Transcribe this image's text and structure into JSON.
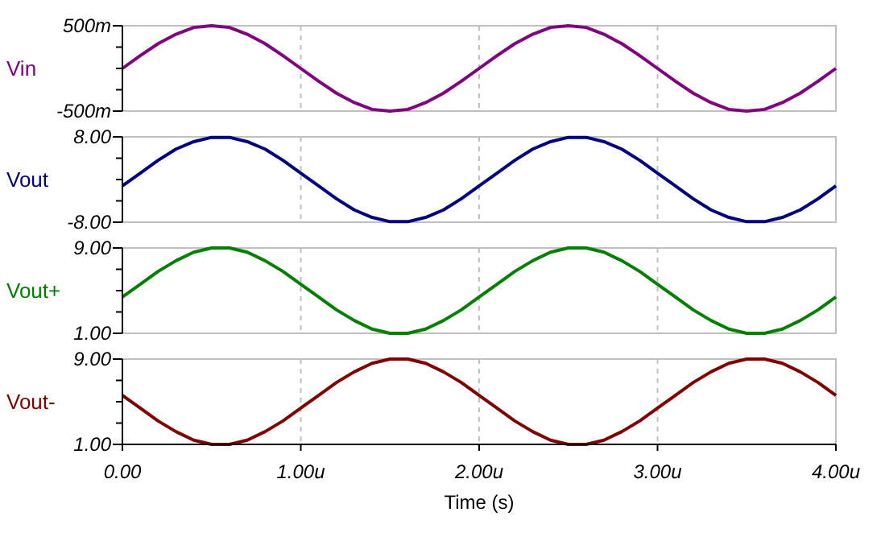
{
  "chart_data": [
    {
      "type": "line",
      "x": [
        0,
        0.1,
        0.2,
        0.3,
        0.4,
        0.5,
        0.6,
        0.7,
        0.8,
        0.9,
        1,
        1.1,
        1.2,
        1.3,
        1.4,
        1.5,
        1.6,
        1.7,
        1.8,
        1.9,
        2,
        2.1,
        2.2,
        2.3,
        2.4,
        2.5,
        2.6,
        2.7,
        2.8,
        2.9,
        3,
        3.1,
        3.2,
        3.3,
        3.4,
        3.5,
        3.6,
        3.7,
        3.8,
        3.9,
        4
      ],
      "series": [
        {
          "name": "Vin",
          "color": "#800080",
          "values": [
            0,
            150,
            290,
            400,
            480,
            500,
            480,
            400,
            290,
            150,
            0,
            -150,
            -290,
            -400,
            -480,
            -500,
            -480,
            -400,
            -290,
            -150,
            0,
            150,
            290,
            400,
            480,
            500,
            480,
            400,
            290,
            150,
            0,
            -150,
            -290,
            -400,
            -480,
            -500,
            -480,
            -400,
            -290,
            -150,
            0
          ]
        }
      ],
      "xlim": [
        0,
        4
      ],
      "xticks": [
        {
          "value": 0,
          "label": null
        },
        {
          "value": 1,
          "label": null
        },
        {
          "value": 2,
          "label": null
        },
        {
          "value": 3,
          "label": null
        },
        {
          "value": 4,
          "label": null
        }
      ],
      "ylim": [
        -500,
        500
      ],
      "yticks": [
        {
          "value": 500,
          "label": "500m"
        },
        {
          "value": 250,
          "label": null
        },
        {
          "value": 0,
          "label": null
        },
        {
          "value": -250,
          "label": null
        },
        {
          "value": -500,
          "label": "-500m"
        }
      ],
      "tick_labels": "y",
      "grid": "x",
      "line_style": "solid",
      "marker": "none"
    },
    {
      "type": "line",
      "x": [
        0,
        0.1,
        0.2,
        0.3,
        0.4,
        0.5,
        0.6,
        0.7,
        0.8,
        0.9,
        1,
        1.1,
        1.2,
        1.3,
        1.4,
        1.5,
        1.6,
        1.7,
        1.8,
        1.9,
        2,
        2.1,
        2.2,
        2.3,
        2.4,
        2.5,
        2.6,
        2.7,
        2.8,
        2.9,
        3,
        3.1,
        3.2,
        3.3,
        3.4,
        3.5,
        3.6,
        3.7,
        3.8,
        3.9,
        4
      ],
      "series": [
        {
          "name": "Vout",
          "color": "#000080",
          "values": [
            -1.2,
            1.2,
            3.6,
            5.7,
            7.1,
            7.9,
            7.9,
            7.1,
            5.7,
            3.6,
            1.2,
            -1.2,
            -3.6,
            -5.7,
            -7.1,
            -7.9,
            -7.9,
            -7.1,
            -5.7,
            -3.6,
            -1.2,
            1.2,
            3.6,
            5.7,
            7.1,
            7.9,
            7.9,
            7.1,
            5.7,
            3.6,
            1.2,
            -1.2,
            -3.6,
            -5.7,
            -7.1,
            -7.9,
            -7.9,
            -7.1,
            -5.7,
            -3.6,
            -1.2
          ]
        }
      ],
      "xlim": [
        0,
        4
      ],
      "xticks": [
        {
          "value": 0,
          "label": null
        },
        {
          "value": 1,
          "label": null
        },
        {
          "value": 2,
          "label": null
        },
        {
          "value": 3,
          "label": null
        },
        {
          "value": 4,
          "label": null
        }
      ],
      "ylim": [
        -8,
        8
      ],
      "yticks": [
        {
          "value": 8,
          "label": "8.00"
        },
        {
          "value": 4,
          "label": null
        },
        {
          "value": 0,
          "label": null
        },
        {
          "value": -4,
          "label": null
        },
        {
          "value": -8,
          "label": "-8.00"
        }
      ],
      "tick_labels": "y",
      "grid": "x",
      "line_style": "solid",
      "marker": "none"
    },
    {
      "type": "line",
      "x": [
        0,
        0.1,
        0.2,
        0.3,
        0.4,
        0.5,
        0.6,
        0.7,
        0.8,
        0.9,
        1,
        1.1,
        1.2,
        1.3,
        1.4,
        1.5,
        1.6,
        1.7,
        1.8,
        1.9,
        2,
        2.1,
        2.2,
        2.3,
        2.4,
        2.5,
        2.6,
        2.7,
        2.8,
        2.9,
        3,
        3.1,
        3.2,
        3.3,
        3.4,
        3.5,
        3.6,
        3.7,
        3.8,
        3.9,
        4
      ],
      "series": [
        {
          "name": "Vout+",
          "color": "#008000",
          "values": [
            4.4,
            5.6,
            6.8,
            7.8,
            8.6,
            9,
            9,
            8.6,
            7.8,
            6.8,
            5.6,
            4.4,
            3.2,
            2.2,
            1.4,
            1,
            1,
            1.4,
            2.2,
            3.2,
            4.4,
            5.6,
            6.8,
            7.8,
            8.6,
            9,
            9,
            8.6,
            7.8,
            6.8,
            5.6,
            4.4,
            3.2,
            2.2,
            1.4,
            1,
            1,
            1.4,
            2.2,
            3.2,
            4.4
          ]
        }
      ],
      "xlim": [
        0,
        4
      ],
      "xticks": [
        {
          "value": 0,
          "label": null
        },
        {
          "value": 1,
          "label": null
        },
        {
          "value": 2,
          "label": null
        },
        {
          "value": 3,
          "label": null
        },
        {
          "value": 4,
          "label": null
        }
      ],
      "ylim": [
        1,
        9
      ],
      "yticks": [
        {
          "value": 9,
          "label": "9.00"
        },
        {
          "value": 7,
          "label": null
        },
        {
          "value": 5,
          "label": null
        },
        {
          "value": 3,
          "label": null
        },
        {
          "value": 1,
          "label": "1.00"
        }
      ],
      "tick_labels": "y",
      "grid": "x",
      "line_style": "solid",
      "marker": "none"
    },
    {
      "type": "line",
      "x": [
        0,
        0.1,
        0.2,
        0.3,
        0.4,
        0.5,
        0.6,
        0.7,
        0.8,
        0.9,
        1,
        1.1,
        1.2,
        1.3,
        1.4,
        1.5,
        1.6,
        1.7,
        1.8,
        1.9,
        2,
        2.1,
        2.2,
        2.3,
        2.4,
        2.5,
        2.6,
        2.7,
        2.8,
        2.9,
        3,
        3.1,
        3.2,
        3.3,
        3.4,
        3.5,
        3.6,
        3.7,
        3.8,
        3.9,
        4
      ],
      "series": [
        {
          "name": "Vout-",
          "color": "#800000",
          "values": [
            5.6,
            4.4,
            3.2,
            2.2,
            1.4,
            1,
            1,
            1.4,
            2.2,
            3.2,
            4.4,
            5.6,
            6.8,
            7.8,
            8.6,
            9,
            9,
            8.6,
            7.8,
            6.8,
            5.6,
            4.4,
            3.2,
            2.2,
            1.4,
            1,
            1,
            1.4,
            2.2,
            3.2,
            4.4,
            5.6,
            6.8,
            7.8,
            8.6,
            9,
            9,
            8.6,
            7.8,
            6.8,
            5.6
          ]
        }
      ],
      "xlim": [
        0,
        4
      ],
      "xlabel": "Time (s)",
      "xticks": [
        {
          "value": 0,
          "label": "0.00"
        },
        {
          "value": 1,
          "label": "1.00u"
        },
        {
          "value": 2,
          "label": "2.00u"
        },
        {
          "value": 3,
          "label": "3.00u"
        },
        {
          "value": 4,
          "label": "4.00u"
        }
      ],
      "ylim": [
        1,
        9
      ],
      "yticks": [
        {
          "value": 9,
          "label": "9.00"
        },
        {
          "value": 7,
          "label": null
        },
        {
          "value": 5,
          "label": null
        },
        {
          "value": 3,
          "label": null
        },
        {
          "value": 1,
          "label": "1.00"
        }
      ],
      "grid": "x",
      "line_style": "solid",
      "marker": "none"
    }
  ]
}
